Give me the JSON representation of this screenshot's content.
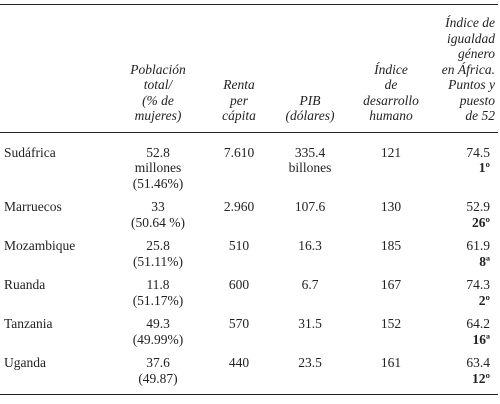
{
  "table": {
    "header": [
      [],
      [
        "Población",
        "total/",
        "(% de",
        "mujeres)"
      ],
      [
        "Renta",
        "per",
        "cápita"
      ],
      [
        "PIB",
        "(dólares)"
      ],
      [
        "Índice",
        "de",
        "desarrollo",
        "humano"
      ],
      [
        "Índice de",
        "igualdad",
        "género",
        "en África.",
        "Puntos y",
        "puesto",
        "de 52"
      ]
    ],
    "rows": [
      {
        "country": "Sudáfrica",
        "population": [
          "52.8",
          "millones",
          "(51.46%)"
        ],
        "income": "7.610",
        "gdp": [
          "335.4",
          "billones"
        ],
        "hdi": "121",
        "gender_score": "74.5",
        "gender_rank": "1º"
      },
      {
        "country": "Marruecos",
        "population": [
          "33",
          "(50.64 %)"
        ],
        "income": "2.960",
        "gdp": [
          "107.6"
        ],
        "hdi": "130",
        "gender_score": "52.9",
        "gender_rank": "26º"
      },
      {
        "country": "Mozambique",
        "population": [
          "25.8",
          "(51.11%)"
        ],
        "income": "510",
        "gdp": [
          "16.3"
        ],
        "hdi": "185",
        "gender_score": "61.9",
        "gender_rank": "8ª"
      },
      {
        "country": "Ruanda",
        "population": [
          "11.8",
          "(51.17%)"
        ],
        "income": "600",
        "gdp": [
          "6.7"
        ],
        "hdi": "167",
        "gender_score": "74.3",
        "gender_rank": "2º"
      },
      {
        "country": "Tanzania",
        "population": [
          "49.3",
          "(49.99%)"
        ],
        "income": "570",
        "gdp": [
          "31.5"
        ],
        "hdi": "152",
        "gender_score": "64.2",
        "gender_rank": "16ª"
      },
      {
        "country": "Uganda",
        "population": [
          "37.6",
          "(49.87)"
        ],
        "income": "440",
        "gdp": [
          "23.5"
        ],
        "hdi": "161",
        "gender_score": "63.4",
        "gender_rank": "12º"
      }
    ]
  }
}
